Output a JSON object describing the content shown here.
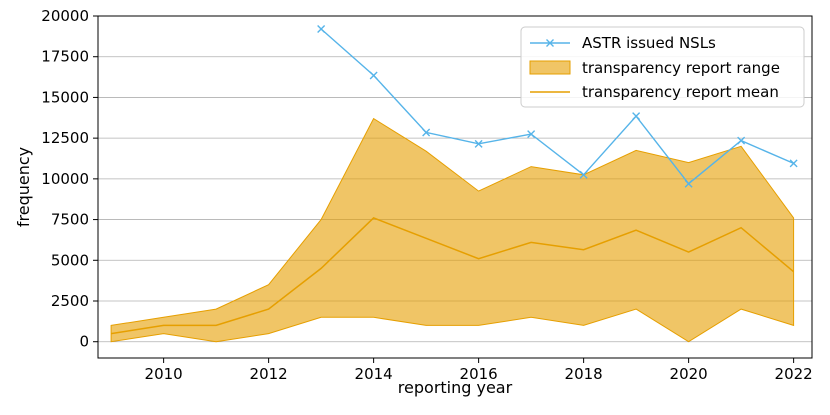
{
  "chart_data": {
    "type": "line",
    "title": "",
    "xlabel": "reporting year",
    "ylabel": "frequency",
    "xlim": [
      2008.75,
      2022.35
    ],
    "ylim": [
      -1000,
      20000
    ],
    "xticks": [
      2010,
      2012,
      2014,
      2016,
      2018,
      2020,
      2022
    ],
    "yticks": [
      0,
      2500,
      5000,
      7500,
      10000,
      12500,
      15000,
      17500,
      20000
    ],
    "grid": "horizontal",
    "legend_position": "top-right",
    "series": [
      {
        "name": "ASTR issued NSLs",
        "kind": "line-x-markers",
        "color": "#56b4e9",
        "x": [
          2013,
          2014,
          2015,
          2016,
          2017,
          2018,
          2019,
          2020,
          2021,
          2022
        ],
        "y": [
          19200,
          16350,
          12850,
          12150,
          12750,
          10250,
          13850,
          9700,
          12350,
          10950
        ]
      },
      {
        "name": "transparency report range",
        "kind": "band",
        "color": "#e69f00",
        "x": [
          2009,
          2010,
          2011,
          2012,
          2013,
          2014,
          2015,
          2016,
          2017,
          2018,
          2019,
          2020,
          2021,
          2022
        ],
        "lower": [
          0,
          500,
          0,
          500,
          1500,
          1500,
          1000,
          1000,
          1500,
          1000,
          2000,
          0,
          2000,
          1000
        ],
        "upper": [
          1000,
          1500,
          2000,
          3500,
          7500,
          13700,
          11700,
          9250,
          10750,
          10250,
          11750,
          11000,
          12000,
          7600
        ]
      },
      {
        "name": "transparency report mean",
        "kind": "line",
        "color": "#e69f00",
        "x": [
          2009,
          2010,
          2011,
          2012,
          2013,
          2014,
          2015,
          2016,
          2017,
          2018,
          2019,
          2020,
          2021,
          2022
        ],
        "y": [
          500,
          1000,
          1000,
          2000,
          4500,
          7600,
          6350,
          5100,
          6100,
          5650,
          6850,
          5500,
          7000,
          4300
        ]
      }
    ]
  }
}
